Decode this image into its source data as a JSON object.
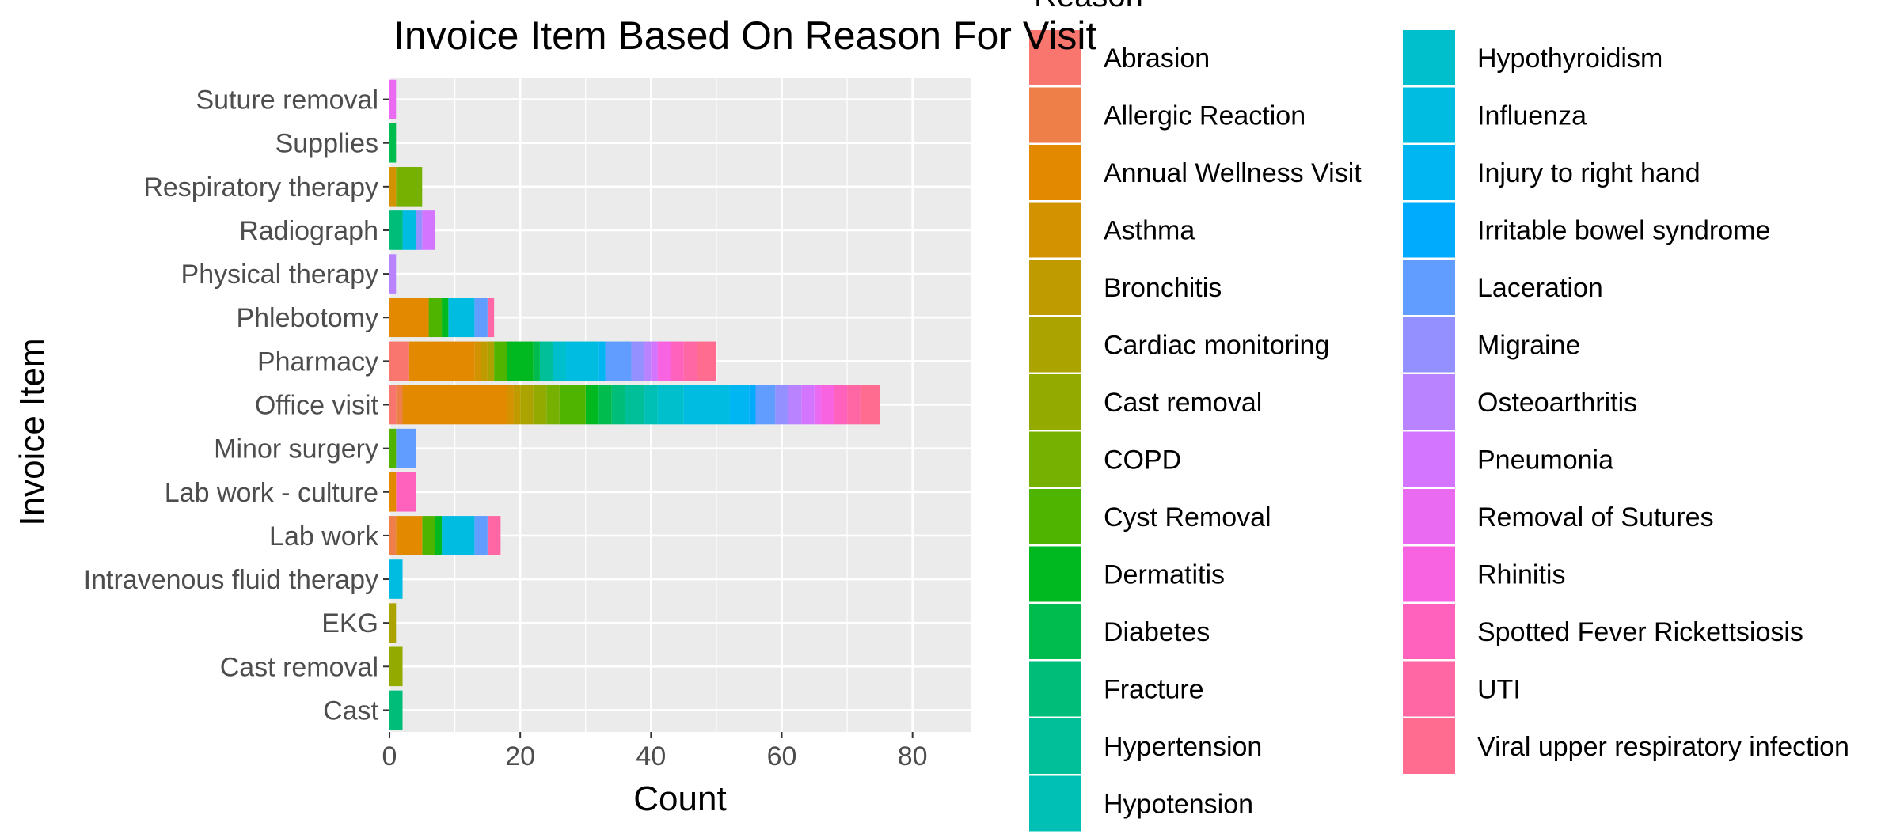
{
  "chart_data": {
    "type": "bar",
    "orientation": "horizontal",
    "stacked": true,
    "title": "Invoice Item Based On Reason For Visit",
    "xlabel": "Count",
    "ylabel": "Invoice Item",
    "xlim": [
      0,
      89
    ],
    "x_ticks": [
      0,
      20,
      40,
      60,
      80
    ],
    "grid": true,
    "legend": {
      "title": "Reason",
      "placement": "right",
      "columns": 2,
      "entries": [
        {
          "name": "Abrasion",
          "color": "#F8766D"
        },
        {
          "name": "Allergic Reaction",
          "color": "#EF7F49"
        },
        {
          "name": "Annual Wellness Visit",
          "color": "#E38900"
        },
        {
          "name": "Asthma",
          "color": "#D39200"
        },
        {
          "name": "Bronchitis",
          "color": "#C09B00"
        },
        {
          "name": "Cardiac monitoring",
          "color": "#AAA300"
        },
        {
          "name": "Cast removal",
          "color": "#93AA00"
        },
        {
          "name": "COPD",
          "color": "#76B000"
        },
        {
          "name": "Cyst Removal",
          "color": "#4FB400"
        },
        {
          "name": "Dermatitis",
          "color": "#00B81F"
        },
        {
          "name": "Diabetes",
          "color": "#00BB4E"
        },
        {
          "name": "Fracture",
          "color": "#00BD79"
        },
        {
          "name": "Hypertension",
          "color": "#00BF99"
        },
        {
          "name": "Hypotension",
          "color": "#00C0B5"
        },
        {
          "name": "Hypothyroidism",
          "color": "#00BFCD"
        },
        {
          "name": "Influenza",
          "color": "#00BCE1"
        },
        {
          "name": "Injury to right hand",
          "color": "#00B6F2"
        },
        {
          "name": "Irritable bowel syndrome",
          "color": "#00ABFD"
        },
        {
          "name": "Laceration",
          "color": "#619CFF"
        },
        {
          "name": "Migraine",
          "color": "#9590FF"
        },
        {
          "name": "Osteoarthritis",
          "color": "#B983FF"
        },
        {
          "name": "Pneumonia",
          "color": "#D475FF"
        },
        {
          "name": "Removal of Sutures",
          "color": "#EA6AF1"
        },
        {
          "name": "Rhinitis",
          "color": "#F763E0"
        },
        {
          "name": "Spotted Fever Rickettsiosis",
          "color": "#FF62BC"
        },
        {
          "name": "UTI",
          "color": "#FF67A4"
        },
        {
          "name": "Viral upper respiratory infection",
          "color": "#FF6C90"
        }
      ]
    },
    "categories": [
      "Cast",
      "Cast removal",
      "EKG",
      "Intravenous fluid therapy",
      "Lab work",
      "Lab work - culture",
      "Minor surgery",
      "Office visit",
      "Pharmacy",
      "Phlebotomy",
      "Physical therapy",
      "Radiograph",
      "Respiratory therapy",
      "Supplies",
      "Suture removal"
    ],
    "bars": [
      {
        "category": "Cast",
        "segments": [
          {
            "reason": "Fracture",
            "value": 2
          }
        ]
      },
      {
        "category": "Cast removal",
        "segments": [
          {
            "reason": "Cast removal",
            "value": 2
          }
        ]
      },
      {
        "category": "EKG",
        "segments": [
          {
            "reason": "Cardiac monitoring",
            "value": 1
          }
        ]
      },
      {
        "category": "Intravenous fluid therapy",
        "segments": [
          {
            "reason": "Influenza",
            "value": 2
          }
        ]
      },
      {
        "category": "Lab work",
        "segments": [
          {
            "reason": "UTI",
            "value": 2
          },
          {
            "reason": "Laceration",
            "value": 2
          },
          {
            "reason": "Influenza",
            "value": 5
          },
          {
            "reason": "Dermatitis",
            "value": 1
          },
          {
            "reason": "Cyst Removal",
            "value": 2
          },
          {
            "reason": "Annual Wellness Visit",
            "value": 4
          },
          {
            "reason": "Allergic Reaction",
            "value": 1
          }
        ]
      },
      {
        "category": "Lab work - culture",
        "segments": [
          {
            "reason": "Spotted Fever Rickettsiosis",
            "value": 3
          },
          {
            "reason": "Annual Wellness Visit",
            "value": 1
          }
        ]
      },
      {
        "category": "Minor surgery",
        "segments": [
          {
            "reason": "Laceration",
            "value": 3
          },
          {
            "reason": "Cyst Removal",
            "value": 1
          }
        ]
      },
      {
        "category": "Office visit",
        "segments": [
          {
            "reason": "Viral upper respiratory infection",
            "value": 3
          },
          {
            "reason": "UTI",
            "value": 2
          },
          {
            "reason": "Spotted Fever Rickettsiosis",
            "value": 2
          },
          {
            "reason": "Rhinitis",
            "value": 2
          },
          {
            "reason": "Removal of Sutures",
            "value": 1
          },
          {
            "reason": "Pneumonia",
            "value": 2
          },
          {
            "reason": "Osteoarthritis",
            "value": 2
          },
          {
            "reason": "Migraine",
            "value": 2
          },
          {
            "reason": "Laceration",
            "value": 3
          },
          {
            "reason": "Irritable bowel syndrome",
            "value": 1
          },
          {
            "reason": "Injury to right hand",
            "value": 3
          },
          {
            "reason": "Influenza",
            "value": 7
          },
          {
            "reason": "Hypothyroidism",
            "value": 4
          },
          {
            "reason": "Hypotension",
            "value": 2
          },
          {
            "reason": "Hypertension",
            "value": 3
          },
          {
            "reason": "Fracture",
            "value": 2
          },
          {
            "reason": "Diabetes",
            "value": 2
          },
          {
            "reason": "Dermatitis",
            "value": 2
          },
          {
            "reason": "Cyst Removal",
            "value": 4
          },
          {
            "reason": "COPD",
            "value": 2
          },
          {
            "reason": "Cast removal",
            "value": 2
          },
          {
            "reason": "Cardiac monitoring",
            "value": 2
          },
          {
            "reason": "Bronchitis",
            "value": 1
          },
          {
            "reason": "Asthma",
            "value": 1
          },
          {
            "reason": "Annual Wellness Visit",
            "value": 16
          },
          {
            "reason": "Allergic Reaction",
            "value": 1
          },
          {
            "reason": "Abrasion",
            "value": 1
          }
        ]
      },
      {
        "category": "Pharmacy",
        "segments": [
          {
            "reason": "Viral upper respiratory infection",
            "value": 3
          },
          {
            "reason": "UTI",
            "value": 2
          },
          {
            "reason": "Spotted Fever Rickettsiosis",
            "value": 2
          },
          {
            "reason": "Rhinitis",
            "value": 2
          },
          {
            "reason": "Pneumonia",
            "value": 1
          },
          {
            "reason": "Osteoarthritis",
            "value": 1
          },
          {
            "reason": "Migraine",
            "value": 2
          },
          {
            "reason": "Laceration",
            "value": 4
          },
          {
            "reason": "Injury to right hand",
            "value": 1
          },
          {
            "reason": "Influenza",
            "value": 5
          },
          {
            "reason": "Hypothyroidism",
            "value": 2
          },
          {
            "reason": "Hypertension",
            "value": 2
          },
          {
            "reason": "Diabetes",
            "value": 1
          },
          {
            "reason": "Dermatitis",
            "value": 4
          },
          {
            "reason": "Cyst Removal",
            "value": 2
          },
          {
            "reason": "Cardiac monitoring",
            "value": 1
          },
          {
            "reason": "Bronchitis",
            "value": 1
          },
          {
            "reason": "Asthma",
            "value": 1
          },
          {
            "reason": "Annual Wellness Visit",
            "value": 10
          },
          {
            "reason": "Abrasion",
            "value": 3
          }
        ]
      },
      {
        "category": "Phlebotomy",
        "segments": [
          {
            "reason": "UTI",
            "value": 1
          },
          {
            "reason": "Laceration",
            "value": 2
          },
          {
            "reason": "Influenza",
            "value": 4
          },
          {
            "reason": "Dermatitis",
            "value": 1
          },
          {
            "reason": "Cyst Removal",
            "value": 2
          },
          {
            "reason": "Annual Wellness Visit",
            "value": 6
          }
        ]
      },
      {
        "category": "Physical therapy",
        "segments": [
          {
            "reason": "Osteoarthritis",
            "value": 1
          }
        ]
      },
      {
        "category": "Radiograph",
        "segments": [
          {
            "reason": "Pneumonia",
            "value": 2
          },
          {
            "reason": "Migraine",
            "value": 1
          },
          {
            "reason": "Influenza",
            "value": 2
          },
          {
            "reason": "Fracture",
            "value": 2
          }
        ]
      },
      {
        "category": "Respiratory therapy",
        "segments": [
          {
            "reason": "COPD",
            "value": 4
          },
          {
            "reason": "Asthma",
            "value": 1
          }
        ]
      },
      {
        "category": "Supplies",
        "segments": [
          {
            "reason": "Diabetes",
            "value": 1
          }
        ]
      },
      {
        "category": "Suture removal",
        "segments": [
          {
            "reason": "Removal of Sutures",
            "value": 1
          }
        ]
      }
    ]
  }
}
